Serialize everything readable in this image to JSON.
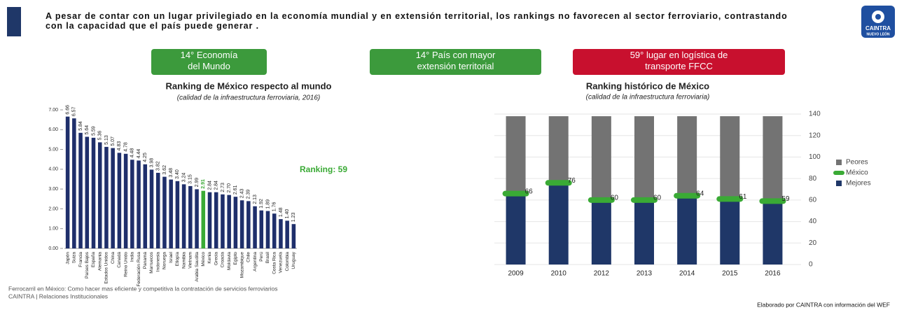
{
  "header": {
    "text": "A pesar de contar con un lugar privilegiado en la economía mundial y en extensión territorial, los rankings no favorecen al sector ferroviario, contrastando con la capacidad que el país puede generar .",
    "logo": [
      "CAINTRA",
      "NUEVO LEÓN"
    ]
  },
  "highlights": [
    {
      "text": "14° Economía del Mundo",
      "color": "#3c9a3c"
    },
    {
      "text": "14° País con mayor extensión territorial",
      "color": "#3c9a3c"
    },
    {
      "text": "59° lugar en logística de transporte FFCC",
      "color": "#c8102e"
    }
  ],
  "chart_data": [
    {
      "type": "bar",
      "title": "Ranking de México respecto al mundo",
      "subtitle": "(calidad de la infraestructura ferroviaria, 2016)",
      "categories": [
        "Japón",
        "Suiza",
        "Francia",
        "Países Bajos",
        "España",
        "Alemania",
        "Estados Unidos",
        "China",
        "Canadá",
        "Reino Unido",
        "India",
        "Federación Rusa",
        "Panamá",
        "Marruecos",
        "Indonesia",
        "Noruega",
        "Israel",
        "Etiopía",
        "Namibia",
        "Vietnam",
        "Arabia Saudita",
        "México",
        "Kenia",
        "Grecia",
        "Croacia",
        "Moldavia",
        "Egipto",
        "Mozambique",
        "Chile",
        "Argentina",
        "Perú",
        "Brasil",
        "Costa Rica",
        "Venezuela",
        "Colombia",
        "Uruguay"
      ],
      "values": [
        6.66,
        6.57,
        5.84,
        5.64,
        5.59,
        5.36,
        5.13,
        5.07,
        4.83,
        4.78,
        4.48,
        4.44,
        4.25,
        3.98,
        3.82,
        3.62,
        3.48,
        3.4,
        3.24,
        3.15,
        2.99,
        2.91,
        2.84,
        2.84,
        2.73,
        2.7,
        2.61,
        2.43,
        2.39,
        2.13,
        1.92,
        1.89,
        1.76,
        1.48,
        1.4,
        1.23
      ],
      "value_labels": [
        "6.66",
        "6.57",
        "5.84",
        "5.64",
        "5.59",
        "5.36",
        "5.13",
        "5.07",
        "4.83",
        "4.78",
        "4.48",
        "4.44",
        "4.25",
        "3.98",
        "3.82",
        "3.62",
        "3.48",
        "3.40",
        "3.24",
        "3.15",
        "2.99",
        "2.91",
        "2.84",
        "2.84",
        "2.73",
        "2.70",
        "2.61",
        "2.43",
        "2.39",
        "2.13",
        "1.92",
        "1.89",
        "1.76",
        "1.48",
        "1.40",
        "1.23"
      ],
      "color": "#1f2f6b",
      "highlight_category": "México",
      "highlight_color": "#3aaa35",
      "annotation": "Ranking: 59",
      "ylim": [
        0,
        7
      ],
      "yticks": [
        {
          "value": 0,
          "label": "0.00"
        },
        {
          "value": 1,
          "label": "1.00"
        },
        {
          "value": 2,
          "label": "2.00"
        },
        {
          "value": 3,
          "label": "3.00"
        },
        {
          "value": 4,
          "label": "4.00"
        },
        {
          "value": 5,
          "label": "5.00"
        },
        {
          "value": 6,
          "label": "6.00"
        },
        {
          "value": 7,
          "label": "7.00"
        }
      ]
    },
    {
      "type": "stacked_bar",
      "title": "Ranking histórico de México",
      "subtitle": "(calidad de la infraestructura ferroviaria)",
      "categories": [
        "2009",
        "2010",
        "2012",
        "2013",
        "2014",
        "2015",
        "2016"
      ],
      "series": [
        {
          "name": "Mejores",
          "color": "#1f3768",
          "values": [
            66,
            76,
            60,
            60,
            64,
            61,
            59
          ]
        },
        {
          "name": "Peores",
          "color": "#737373",
          "values": [
            72,
            62,
            78,
            78,
            74,
            77,
            79
          ]
        },
        {
          "name": "México",
          "color": "#3aaa35",
          "kind": "marker",
          "values": [
            66,
            76,
            60,
            60,
            64,
            61,
            59
          ]
        }
      ],
      "legend_order": [
        "Peores",
        "México",
        "Mejores"
      ],
      "legend": "right",
      "ylim": [
        0,
        140
      ],
      "yticks": [
        0,
        20,
        40,
        60,
        80,
        100,
        120,
        140
      ],
      "yaxis_side": "right"
    }
  ],
  "footer": {
    "lines": [
      "Ferrocarril en México: Como hacer mas eficiente y competitiva la contratación de servicios ferroviarios",
      "CAINTRA | Relaciones Institucionales"
    ],
    "credit": "Elaborado por CAINTRA con información del WEF"
  }
}
